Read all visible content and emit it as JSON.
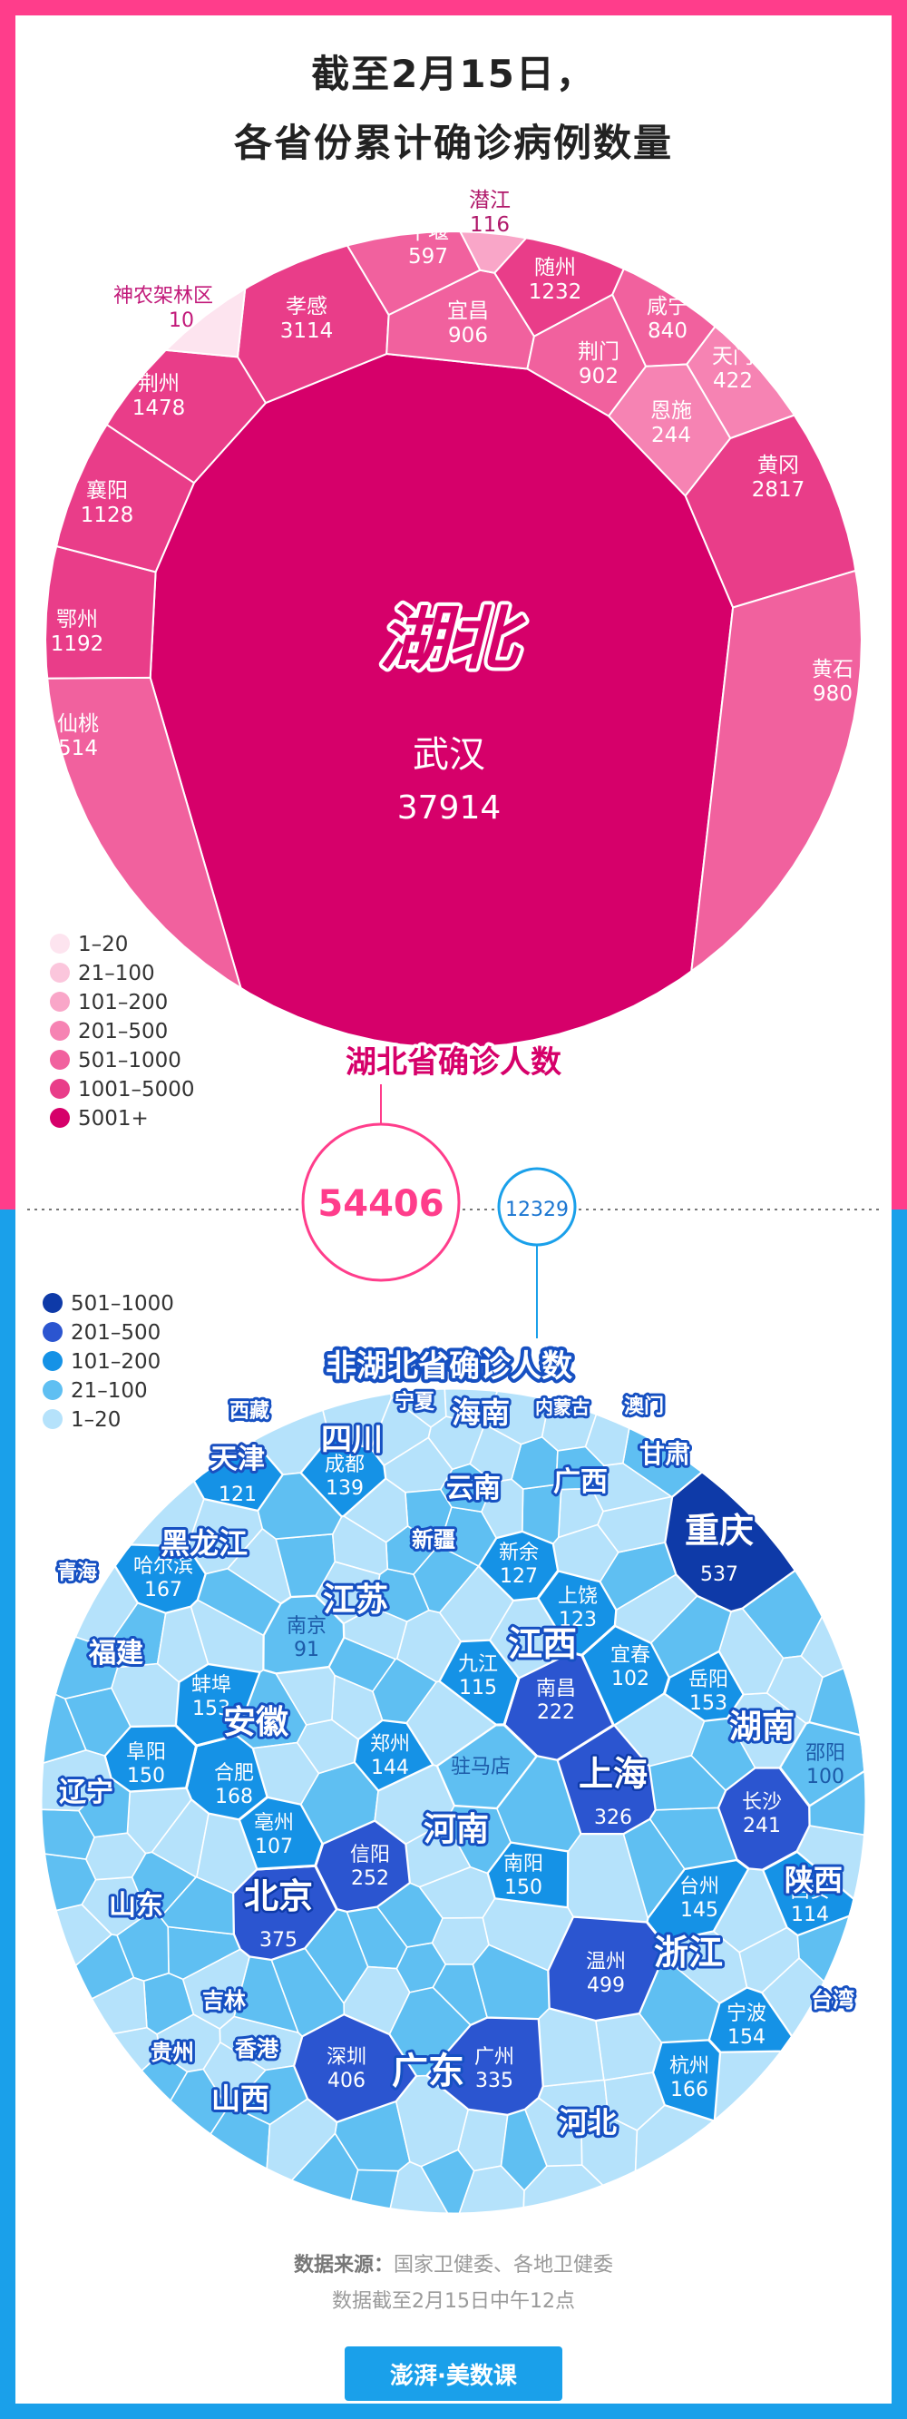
{
  "title_line1": "截至2月15日，",
  "title_line2": "各省份累计确诊病例数量",
  "hubei": {
    "label": "湖北",
    "total_label": "湖北省确诊人数",
    "total": "54406"
  },
  "non_hubei": {
    "label": "非湖北省确诊人数",
    "total": "12329"
  },
  "legend_top": {
    "items": [
      "1–20",
      "21–100",
      "101–200",
      "201–500",
      "501–1000",
      "1001–5000",
      "5001+"
    ],
    "colors": [
      "#fde4ef",
      "#fbc6dc",
      "#f9a6c8",
      "#f683b3",
      "#f1619e",
      "#e93d89",
      "#d6006a"
    ]
  },
  "legend_bottom": {
    "items": [
      "501–1000",
      "201–500",
      "101–200",
      "21–100",
      "1–20"
    ],
    "colors": [
      "#0e3aa8",
      "#2b55d0",
      "#1592e6",
      "#5fbff2",
      "#b5e2fb"
    ]
  },
  "source": {
    "label": "数据来源：",
    "text": "国家卫健委、各地卫健委",
    "note": "数据截至2月15日中午12点"
  },
  "logo": "澎湃·美数课",
  "chart_data": [
    {
      "type": "treemap",
      "title": "截至2月15日，各省份累计确诊病例数量",
      "group": "湖北",
      "categories": [
        "武汉",
        "孝感",
        "黄冈",
        "随州",
        "荆州",
        "鄂州",
        "襄阳",
        "黄石",
        "宜昌",
        "荆门",
        "咸宁",
        "十堰",
        "仙桃",
        "天门",
        "恩施",
        "潜江",
        "神农架林区"
      ],
      "values": [
        37914,
        3114,
        2817,
        1232,
        1478,
        1192,
        1128,
        980,
        906,
        902,
        840,
        597,
        514,
        422,
        244,
        116,
        10
      ]
    },
    {
      "type": "treemap",
      "group": "非湖北省",
      "provinces": [
        {
          "name": "重庆",
          "cities": [
            {
              "name": "",
              "value": 537
            }
          ]
        },
        {
          "name": "浙江",
          "cities": [
            {
              "name": "温州",
              "value": 499
            },
            {
              "name": "杭州",
              "value": 166
            },
            {
              "name": "宁波",
              "value": 154
            },
            {
              "name": "台州",
              "value": 145
            }
          ]
        },
        {
          "name": "广东",
          "cities": [
            {
              "name": "深圳",
              "value": 406
            },
            {
              "name": "广州",
              "value": 335
            }
          ]
        },
        {
          "name": "北京",
          "cities": [
            {
              "name": "",
              "value": 375
            }
          ]
        },
        {
          "name": "上海",
          "cities": [
            {
              "name": "",
              "value": 326
            }
          ]
        },
        {
          "name": "河南",
          "cities": [
            {
              "name": "信阳",
              "value": 252
            },
            {
              "name": "南阳",
              "value": 150
            },
            {
              "name": "郑州",
              "value": 144
            },
            {
              "name": "驻马店",
              "value": null
            }
          ]
        },
        {
          "name": "湖南",
          "cities": [
            {
              "name": "长沙",
              "value": 241
            },
            {
              "name": "岳阳",
              "value": 153
            },
            {
              "name": "邵阳",
              "value": 100
            }
          ]
        },
        {
          "name": "江西",
          "cities": [
            {
              "name": "南昌",
              "value": 222
            },
            {
              "name": "新余",
              "value": 127
            },
            {
              "name": "九江",
              "value": 115
            },
            {
              "name": "上饶",
              "value": 123
            },
            {
              "name": "宜春",
              "value": 102
            }
          ]
        },
        {
          "name": "安徽",
          "cities": [
            {
              "name": "合肥",
              "value": 168
            },
            {
              "name": "蚌埠",
              "value": 153
            },
            {
              "name": "阜阳",
              "value": 150
            },
            {
              "name": "亳州",
              "value": 107
            }
          ]
        },
        {
          "name": "黑龙江",
          "cities": [
            {
              "name": "哈尔滨",
              "value": 167
            }
          ]
        },
        {
          "name": "四川",
          "cities": [
            {
              "name": "成都",
              "value": 139
            }
          ]
        },
        {
          "name": "天津",
          "cities": [
            {
              "name": "",
              "value": 121
            }
          ]
        },
        {
          "name": "陕西",
          "cities": [
            {
              "name": "西安",
              "value": 114
            }
          ]
        },
        {
          "name": "江苏",
          "cities": [
            {
              "name": "南京",
              "value": 91
            }
          ]
        },
        {
          "name": "山东",
          "cities": []
        },
        {
          "name": "河北",
          "cities": []
        },
        {
          "name": "福建",
          "cities": []
        },
        {
          "name": "广西",
          "cities": []
        },
        {
          "name": "海南",
          "cities": []
        },
        {
          "name": "云南",
          "cities": []
        },
        {
          "name": "辽宁",
          "cities": []
        },
        {
          "name": "山西",
          "cities": []
        },
        {
          "name": "贵州",
          "cities": []
        },
        {
          "name": "甘肃",
          "cities": []
        },
        {
          "name": "新疆",
          "cities": []
        },
        {
          "name": "吉林",
          "cities": []
        },
        {
          "name": "宁夏",
          "cities": []
        },
        {
          "name": "内蒙古",
          "cities": []
        },
        {
          "name": "香港",
          "cities": []
        },
        {
          "name": "台湾",
          "cities": []
        },
        {
          "name": "青海",
          "cities": []
        },
        {
          "name": "澳门",
          "cities": []
        },
        {
          "name": "西藏",
          "cities": []
        }
      ]
    }
  ]
}
